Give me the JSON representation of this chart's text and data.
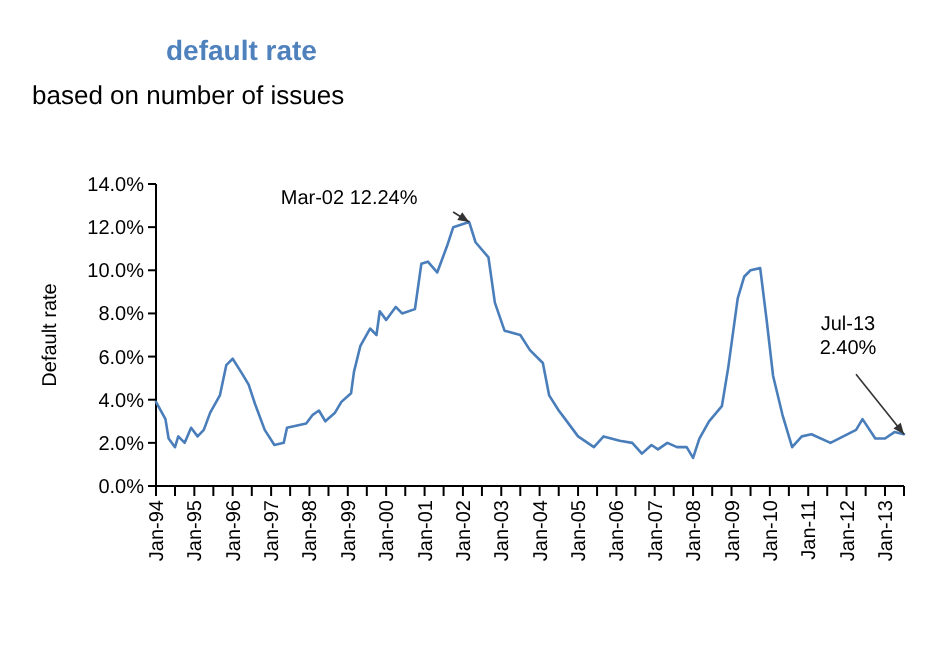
{
  "chart_data": {
    "type": "line",
    "title": "default rate",
    "subtitle": "based on number of issues",
    "ylabel": "Default rate",
    "x": [
      "1994-01",
      "1994-04",
      "1994-05",
      "1994-07",
      "1994-08",
      "1994-10",
      "1994-12",
      "1995-02",
      "1995-04",
      "1995-06",
      "1995-09",
      "1995-11",
      "1996-01",
      "1996-04",
      "1996-06",
      "1996-08",
      "1996-11",
      "1997-02",
      "1997-05",
      "1997-06",
      "1997-12",
      "1998-02",
      "1998-04",
      "1998-06",
      "1998-09",
      "1998-11",
      "1999-02",
      "1999-03",
      "1999-05",
      "1999-08",
      "1999-10",
      "1999-11",
      "2000-01",
      "2000-04",
      "2000-06",
      "2000-10",
      "2000-12",
      "2001-02",
      "2001-05",
      "2001-08",
      "2001-10",
      "2002-03",
      "2002-05",
      "2002-09",
      "2002-11",
      "2003-02",
      "2003-07",
      "2003-10",
      "2004-02",
      "2004-04",
      "2004-07",
      "2004-09",
      "2005-01",
      "2005-06",
      "2005-09",
      "2006-02",
      "2006-06",
      "2006-09",
      "2006-12",
      "2007-02",
      "2007-05",
      "2007-08",
      "2007-11",
      "2008-01",
      "2008-03",
      "2008-06",
      "2008-10",
      "2008-12",
      "2009-03",
      "2009-05",
      "2009-07",
      "2009-10",
      "2009-12",
      "2010-02",
      "2010-05",
      "2010-08",
      "2010-11",
      "2011-02",
      "2011-08",
      "2011-12",
      "2012-04",
      "2012-06",
      "2012-10",
      "2013-01",
      "2013-04",
      "2013-07"
    ],
    "series": [
      {
        "color": "#4a7ebb",
        "values": [
          3.9,
          3.1,
          2.2,
          1.8,
          2.3,
          2.0,
          2.7,
          2.3,
          2.6,
          3.4,
          4.2,
          5.6,
          5.9,
          5.2,
          4.7,
          3.8,
          2.6,
          1.9,
          2.0,
          2.7,
          2.9,
          3.3,
          3.5,
          3.0,
          3.4,
          3.9,
          4.3,
          5.3,
          6.5,
          7.3,
          7.0,
          8.1,
          7.7,
          8.3,
          8.0,
          8.2,
          10.3,
          10.4,
          9.9,
          11.1,
          12.0,
          12.24,
          11.3,
          10.6,
          8.5,
          7.2,
          7.0,
          6.3,
          5.7,
          4.2,
          3.5,
          3.1,
          2.3,
          1.8,
          2.3,
          2.1,
          2.0,
          1.5,
          1.9,
          1.7,
          2.0,
          1.8,
          1.8,
          1.3,
          2.2,
          3.0,
          3.7,
          5.5,
          8.7,
          9.7,
          10.0,
          10.1,
          7.7,
          5.1,
          3.3,
          1.8,
          2.3,
          2.4,
          2.0,
          2.3,
          2.6,
          3.1,
          2.2,
          2.2,
          2.5,
          2.4
        ]
      }
    ],
    "xlim": [
      "1994-01",
      "2013-07"
    ],
    "xticks": [
      {
        "value": "1994-01",
        "label": "Jan-94"
      },
      {
        "value": "1994-07",
        "label": null
      },
      {
        "value": "1995-01",
        "label": "Jan-95"
      },
      {
        "value": "1995-07",
        "label": null
      },
      {
        "value": "1996-01",
        "label": "Jan-96"
      },
      {
        "value": "1996-07",
        "label": null
      },
      {
        "value": "1997-01",
        "label": "Jan-97"
      },
      {
        "value": "1997-07",
        "label": null
      },
      {
        "value": "1998-01",
        "label": "Jan-98"
      },
      {
        "value": "1998-07",
        "label": null
      },
      {
        "value": "1999-01",
        "label": "Jan-99"
      },
      {
        "value": "1999-07",
        "label": null
      },
      {
        "value": "2000-01",
        "label": "Jan-00"
      },
      {
        "value": "2000-07",
        "label": null
      },
      {
        "value": "2001-01",
        "label": "Jan-01"
      },
      {
        "value": "2001-07",
        "label": null
      },
      {
        "value": "2002-01",
        "label": "Jan-02"
      },
      {
        "value": "2002-07",
        "label": null
      },
      {
        "value": "2003-01",
        "label": "Jan-03"
      },
      {
        "value": "2003-07",
        "label": null
      },
      {
        "value": "2004-01",
        "label": "Jan-04"
      },
      {
        "value": "2004-07",
        "label": null
      },
      {
        "value": "2005-01",
        "label": "Jan-05"
      },
      {
        "value": "2005-07",
        "label": null
      },
      {
        "value": "2006-01",
        "label": "Jan-06"
      },
      {
        "value": "2006-07",
        "label": null
      },
      {
        "value": "2007-01",
        "label": "Jan-07"
      },
      {
        "value": "2007-07",
        "label": null
      },
      {
        "value": "2008-01",
        "label": "Jan-08"
      },
      {
        "value": "2008-07",
        "label": null
      },
      {
        "value": "2009-01",
        "label": "Jan-09"
      },
      {
        "value": "2009-07",
        "label": null
      },
      {
        "value": "2010-01",
        "label": "Jan-10"
      },
      {
        "value": "2010-07",
        "label": null
      },
      {
        "value": "2011-01",
        "label": "Jan-11"
      },
      {
        "value": "2011-07",
        "label": null
      },
      {
        "value": "2012-01",
        "label": "Jan-12"
      },
      {
        "value": "2012-07",
        "label": null
      },
      {
        "value": "2013-01",
        "label": "Jan-13"
      },
      {
        "value": "2013-07",
        "label": null
      }
    ],
    "ylim": [
      0,
      14
    ],
    "yticks": [
      {
        "value": 0,
        "label": "0.0%"
      },
      {
        "value": 2,
        "label": "2.0%"
      },
      {
        "value": 4,
        "label": "4.0%"
      },
      {
        "value": 6,
        "label": "6.0%"
      },
      {
        "value": 8,
        "label": "8.0%"
      },
      {
        "value": 10,
        "label": "10.0%"
      },
      {
        "value": 12,
        "label": "12.0%"
      },
      {
        "value": 14,
        "label": "14.0%"
      }
    ],
    "annotations": [
      {
        "text": "Mar-02 12.24%",
        "x": "2002-03",
        "y": 12.24
      },
      {
        "text": "Jul-13\n2.40%",
        "x": "2013-07",
        "y": 2.4
      }
    ]
  }
}
